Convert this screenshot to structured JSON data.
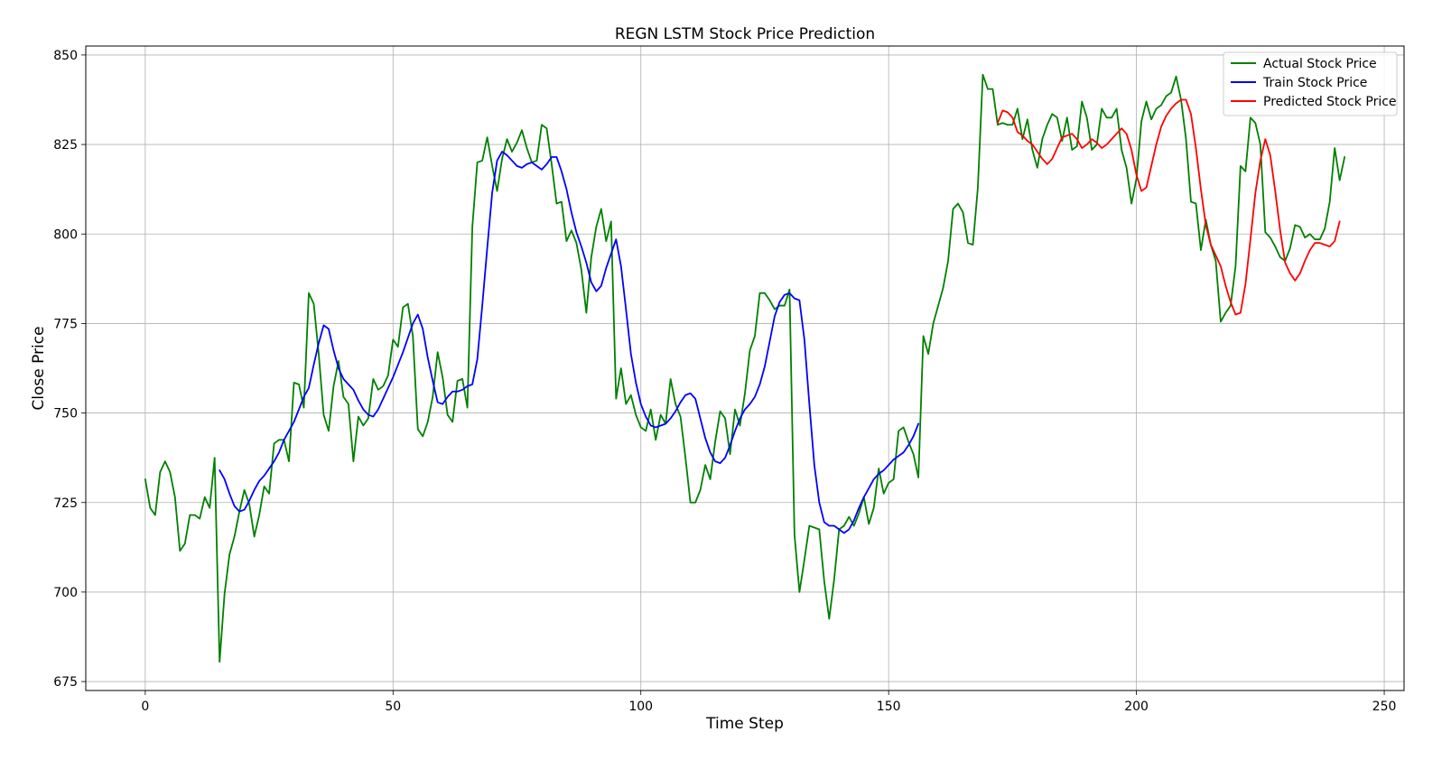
{
  "chart_data": {
    "type": "line",
    "title": "REGN LSTM Stock Price Prediction",
    "xlabel": "Time Step",
    "ylabel": "Close Price",
    "xlim": [
      -12,
      254
    ],
    "ylim": [
      672.5,
      852.5
    ],
    "xticks": [
      0,
      50,
      100,
      150,
      200,
      250
    ],
    "yticks": [
      675,
      700,
      725,
      750,
      775,
      800,
      825,
      850
    ],
    "grid": true,
    "legend_position": "top-right",
    "series": [
      {
        "name": "Actual Stock Price",
        "color": "#008000",
        "x_start": 0,
        "values": [
          731.5,
          723.5,
          721.5,
          733.5,
          736.5,
          733.5,
          726.5,
          711.5,
          713.5,
          721.5,
          721.5,
          720.5,
          726.5,
          723.5,
          737.5,
          680.5,
          699.5,
          710.5,
          715.5,
          722.5,
          728.5,
          724.5,
          715.5,
          721.5,
          729.5,
          727.5,
          741.5,
          742.5,
          742.5,
          736.5,
          758.5,
          758.0,
          751.5,
          783.5,
          780.5,
          766.5,
          749.5,
          745.0,
          757.5,
          764.5,
          754.5,
          752.5,
          736.5,
          749.0,
          746.5,
          748.5,
          759.5,
          756.5,
          757.5,
          760.5,
          770.5,
          768.5,
          779.5,
          780.5,
          771.5,
          745.5,
          743.5,
          747.5,
          754.5,
          767.0,
          760.0,
          749.5,
          747.5,
          759.0,
          759.5,
          751.5,
          802.0,
          820.0,
          820.5,
          827.0,
          819.0,
          812.0,
          821.0,
          826.5,
          823.0,
          825.5,
          829.0,
          824.0,
          820.0,
          820.5,
          830.5,
          829.5,
          819.5,
          808.5,
          809.0,
          798.0,
          801.0,
          797.5,
          790.0,
          778.0,
          793.5,
          802.0,
          807.0,
          798.0,
          803.5,
          754.0,
          762.5,
          752.5,
          755.0,
          749.5,
          746.0,
          745.0,
          751.0,
          742.5,
          749.5,
          747.0,
          759.5,
          752.5,
          749.0,
          737.5,
          725.0,
          725.0,
          728.5,
          735.5,
          731.5,
          742.0,
          750.5,
          748.5,
          738.5,
          751.0,
          746.5,
          755.5,
          767.5,
          771.5,
          783.5,
          783.5,
          781.5,
          779.0,
          780.0,
          780.0,
          784.5,
          716.0,
          700.0,
          709.0,
          718.5,
          718.0,
          717.5,
          703.0,
          692.5,
          703.5,
          717.5,
          718.5,
          721.0,
          718.5,
          722.0,
          726.5,
          719.0,
          723.5,
          734.5,
          727.5,
          730.5,
          731.5,
          745.0,
          746.0,
          742.0,
          738.5,
          732.0,
          771.5,
          766.5,
          775.0,
          780.0,
          785.0,
          792.5,
          807.0,
          808.5,
          806.0,
          797.5,
          797.0,
          813.0,
          844.5,
          840.5,
          840.5,
          830.5,
          831.0,
          830.5,
          830.5,
          835.0,
          826.5,
          832.0,
          823.5,
          818.5,
          826.5,
          830.5,
          833.5,
          832.5,
          826.0,
          832.5,
          823.5,
          824.5,
          837.0,
          832.5,
          823.5,
          825.0,
          835.0,
          832.5,
          832.5,
          835.0,
          823.5,
          818.5,
          808.5,
          815.5,
          831.5,
          837.0,
          832.0,
          835.0,
          836.0,
          838.5,
          839.5,
          844.0,
          837.5,
          826.5,
          809.0,
          808.5,
          795.5,
          804.0,
          797.0,
          792.5,
          775.5,
          778.0,
          780.0,
          791.0,
          819.0,
          817.5,
          832.5,
          831.0,
          825.0,
          800.5,
          799.0,
          796.5,
          793.5,
          792.5,
          796.0,
          802.5,
          802.0,
          799.0,
          800.0,
          798.5,
          798.5,
          801.5,
          809.0,
          824.0,
          815.0,
          821.5
        ]
      },
      {
        "name": "Train Stock Price",
        "color": "#0000ff",
        "x_start": 15,
        "values": [
          734.0,
          731.5,
          727.5,
          724.0,
          722.5,
          723.0,
          725.5,
          728.5,
          731.0,
          732.5,
          734.5,
          736.5,
          739.0,
          742.5,
          745.0,
          747.5,
          751.0,
          754.5,
          757.0,
          763.5,
          769.5,
          774.5,
          773.5,
          767.5,
          762.5,
          759.5,
          758.0,
          756.5,
          753.5,
          751.0,
          749.5,
          749.0,
          751.0,
          754.0,
          757.0,
          760.0,
          763.5,
          767.0,
          771.0,
          775.0,
          777.5,
          773.5,
          765.5,
          759.0,
          753.0,
          752.5,
          754.5,
          756.0,
          756.0,
          756.5,
          757.5,
          758.0,
          765.0,
          780.0,
          796.0,
          811.5,
          820.5,
          823.0,
          822.0,
          820.5,
          819.0,
          818.5,
          819.5,
          820.0,
          819.0,
          818.0,
          819.5,
          821.5,
          821.5,
          817.5,
          812.5,
          806.0,
          800.5,
          796.5,
          792.0,
          786.5,
          784.0,
          785.5,
          790.5,
          794.5,
          798.5,
          791.0,
          779.0,
          766.5,
          758.5,
          752.5,
          749.0,
          746.5,
          746.0,
          746.5,
          747.0,
          748.5,
          750.5,
          753.0,
          755.0,
          755.5,
          754.0,
          748.5,
          743.0,
          739.0,
          736.5,
          736.0,
          737.5,
          741.0,
          745.0,
          748.5,
          751.0,
          752.5,
          754.5,
          758.0,
          763.0,
          770.0,
          777.0,
          781.0,
          783.0,
          783.5,
          782.0,
          781.5,
          770.5,
          752.5,
          735.5,
          725.0,
          719.5,
          718.5,
          718.5,
          717.5,
          716.5,
          717.5,
          720.0,
          723.5,
          726.5,
          729.0,
          731.5,
          733.0,
          734.0,
          735.5,
          737.0,
          738.0,
          739.0,
          741.0,
          743.5,
          747.0
        ]
      },
      {
        "name": "Predicted Stock Price",
        "color": "#ff0000",
        "x_start": 172,
        "values": [
          831.0,
          834.5,
          834.0,
          832.5,
          828.5,
          827.5,
          826.0,
          825.0,
          823.0,
          821.0,
          819.5,
          821.0,
          824.0,
          827.0,
          827.5,
          828.0,
          826.5,
          824.0,
          825.0,
          826.5,
          825.5,
          824.0,
          825.0,
          826.5,
          828.0,
          829.5,
          828.0,
          823.5,
          816.5,
          812.0,
          813.0,
          819.0,
          825.0,
          830.0,
          833.0,
          835.0,
          836.5,
          837.5,
          837.5,
          833.5,
          824.0,
          812.5,
          802.5,
          797.0,
          794.0,
          791.0,
          785.5,
          781.0,
          777.5,
          778.0,
          786.0,
          798.5,
          811.5,
          820.5,
          826.5,
          822.0,
          812.0,
          801.0,
          792.0,
          789.0,
          787.0,
          789.0,
          792.5,
          795.5,
          797.5,
          797.5,
          797.0,
          796.5,
          798.0,
          803.5
        ]
      }
    ]
  }
}
